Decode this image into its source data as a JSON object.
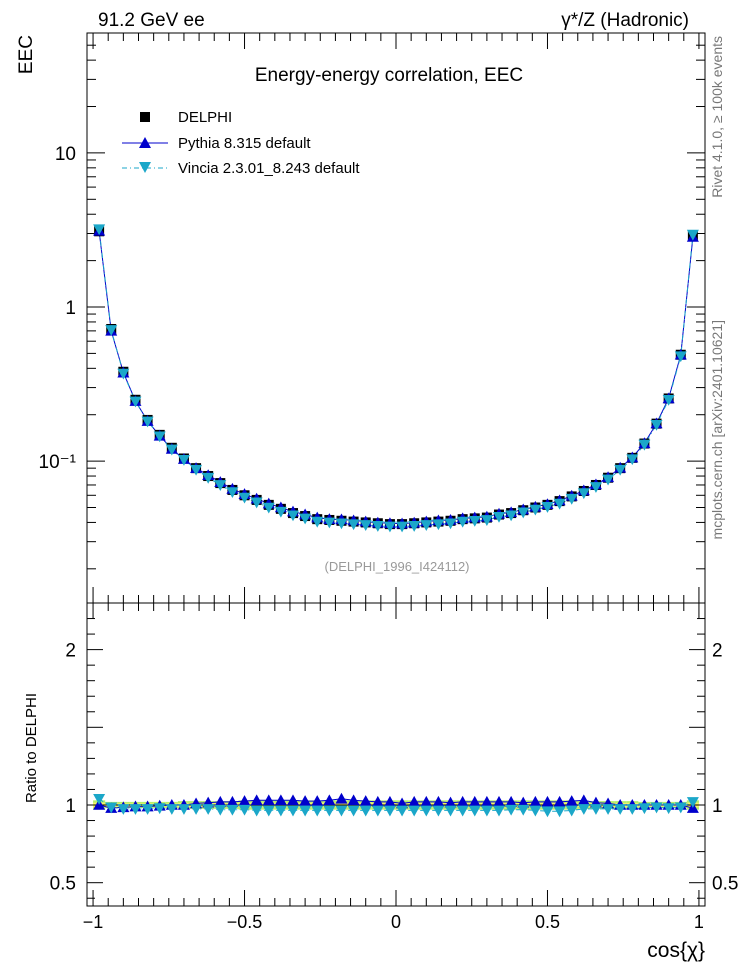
{
  "header": {
    "left": "91.2 GeV ee",
    "right": "γ*/Z (Hadronic)"
  },
  "side_labels": {
    "rivet": "Rivet 4.1.0, ≥ 100k events",
    "mcplots": "mcplots.cern.ch [arXiv:2401.10621]"
  },
  "chart_data": {
    "type": "line",
    "title": "Energy-energy correlation, EEC",
    "analysis_id": "(DELPHI_1996_I424112)",
    "xlabel": "cos{χ}",
    "ylabel": "EEC",
    "ratio_ylabel": "Ratio to DELPHI",
    "xlim": [
      -1.02,
      1.02
    ],
    "ylim": [
      0.012,
      60
    ],
    "yscale": "log",
    "ratio_ylim": [
      0.35,
      2.3
    ],
    "x_ticks": [
      -1,
      -0.5,
      0,
      0.5,
      1
    ],
    "x_tick_labels": [
      "−1",
      "−0.5",
      "0",
      "0.5",
      "1"
    ],
    "y_ticks": [
      0.1,
      1,
      10
    ],
    "y_tick_labels": [
      "10⁻¹",
      "1",
      "10"
    ],
    "ratio_ticks": [
      0.5,
      1,
      2
    ],
    "ratio_tick_labels": [
      "0.5",
      "1",
      "2"
    ],
    "legend_position": "top-left",
    "colors": {
      "data": "#000000",
      "pythia": "#0000cc",
      "vincia": "#1ba7c9",
      "band_green": "#b6ef6b",
      "band_yellow": "#f7f36a",
      "analysis_id": "#999999"
    },
    "x": [
      -0.98,
      -0.94,
      -0.9,
      -0.86,
      -0.82,
      -0.78,
      -0.74,
      -0.7,
      -0.66,
      -0.62,
      -0.58,
      -0.54,
      -0.5,
      -0.46,
      -0.42,
      -0.38,
      -0.34,
      -0.3,
      -0.26,
      -0.22,
      -0.18,
      -0.14,
      -0.1,
      -0.06,
      -0.02,
      0.02,
      0.06,
      0.1,
      0.14,
      0.18,
      0.22,
      0.26,
      0.3,
      0.34,
      0.38,
      0.42,
      0.46,
      0.5,
      0.54,
      0.58,
      0.62,
      0.66,
      0.7,
      0.74,
      0.78,
      0.82,
      0.86,
      0.9,
      0.94,
      0.98
    ],
    "series": [
      {
        "name": "DELPHI",
        "values": [
          3.1,
          0.72,
          0.38,
          0.25,
          0.185,
          0.148,
          0.122,
          0.104,
          0.09,
          0.08,
          0.072,
          0.065,
          0.06,
          0.056,
          0.052,
          0.049,
          0.046,
          0.044,
          0.042,
          0.0415,
          0.041,
          0.0405,
          0.04,
          0.0395,
          0.039,
          0.039,
          0.0395,
          0.04,
          0.0405,
          0.041,
          0.042,
          0.0425,
          0.043,
          0.045,
          0.046,
          0.048,
          0.05,
          0.052,
          0.055,
          0.059,
          0.064,
          0.07,
          0.078,
          0.09,
          0.105,
          0.13,
          0.175,
          0.255,
          0.49,
          2.9
        ]
      },
      {
        "name": "Pythia 8.315 default",
        "values": [
          3.12,
          0.7,
          0.375,
          0.245,
          0.182,
          0.146,
          0.12,
          0.103,
          0.09,
          0.081,
          0.073,
          0.066,
          0.061,
          0.057,
          0.053,
          0.05,
          0.047,
          0.045,
          0.043,
          0.042,
          0.0418,
          0.0412,
          0.0405,
          0.0398,
          0.0395,
          0.0393,
          0.0398,
          0.0405,
          0.0412,
          0.0415,
          0.0425,
          0.043,
          0.0435,
          0.0455,
          0.0465,
          0.0485,
          0.0505,
          0.0525,
          0.0555,
          0.0595,
          0.0645,
          0.0705,
          0.0785,
          0.0905,
          0.1055,
          0.1305,
          0.1755,
          0.255,
          0.49,
          2.85
        ]
      },
      {
        "name": "Vincia 2.3.01_8.243 default",
        "values": [
          3.2,
          0.71,
          0.37,
          0.244,
          0.181,
          0.145,
          0.119,
          0.102,
          0.088,
          0.078,
          0.07,
          0.063,
          0.058,
          0.054,
          0.05,
          0.047,
          0.0445,
          0.0425,
          0.0405,
          0.04,
          0.0395,
          0.039,
          0.0385,
          0.038,
          0.0377,
          0.0377,
          0.038,
          0.0385,
          0.039,
          0.0395,
          0.0405,
          0.041,
          0.0415,
          0.0435,
          0.0445,
          0.0465,
          0.0485,
          0.0505,
          0.053,
          0.057,
          0.062,
          0.068,
          0.076,
          0.088,
          0.103,
          0.128,
          0.172,
          0.25,
          0.48,
          2.95
        ]
      }
    ],
    "ratio_series": [
      {
        "name": "Pythia 8.315 default",
        "values": [
          1.0,
          0.98,
          0.985,
          0.99,
          0.99,
          0.995,
          1.0,
          1.0,
          1.01,
          1.015,
          1.02,
          1.02,
          1.025,
          1.03,
          1.03,
          1.03,
          1.03,
          1.025,
          1.025,
          1.03,
          1.04,
          1.03,
          1.025,
          1.02,
          1.02,
          1.01,
          1.02,
          1.02,
          1.02,
          1.015,
          1.02,
          1.02,
          1.02,
          1.02,
          1.02,
          1.015,
          1.02,
          1.02,
          1.02,
          1.025,
          1.03,
          1.015,
          1.01,
          1.0,
          1.0,
          1.0,
          1.0,
          1.0,
          1.0,
          0.98
        ]
      },
      {
        "name": "Vincia 2.3.01_8.243 default",
        "values": [
          1.04,
          0.985,
          0.975,
          0.975,
          0.975,
          0.98,
          0.975,
          0.975,
          0.975,
          0.975,
          0.97,
          0.97,
          0.97,
          0.965,
          0.965,
          0.965,
          0.965,
          0.965,
          0.965,
          0.965,
          0.965,
          0.965,
          0.965,
          0.965,
          0.965,
          0.965,
          0.965,
          0.965,
          0.965,
          0.965,
          0.965,
          0.965,
          0.965,
          0.965,
          0.97,
          0.97,
          0.965,
          0.96,
          0.96,
          0.965,
          0.975,
          0.975,
          0.975,
          0.975,
          0.975,
          0.98,
          0.985,
          0.98,
          0.985,
          1.02
        ]
      }
    ],
    "ratio_band_halfwidths": [
      0.03,
      0.02,
      0.02,
      0.02,
      0.02,
      0.02,
      0.02,
      0.025,
      0.025,
      0.025,
      0.025,
      0.025,
      0.03,
      0.03,
      0.03,
      0.03,
      0.03,
      0.03,
      0.03,
      0.03,
      0.03,
      0.03,
      0.03,
      0.03,
      0.03,
      0.03,
      0.03,
      0.03,
      0.03,
      0.03,
      0.03,
      0.03,
      0.03,
      0.03,
      0.03,
      0.03,
      0.03,
      0.03,
      0.03,
      0.03,
      0.025,
      0.025,
      0.025,
      0.025,
      0.025,
      0.02,
      0.02,
      0.02,
      0.02,
      0.03
    ]
  }
}
